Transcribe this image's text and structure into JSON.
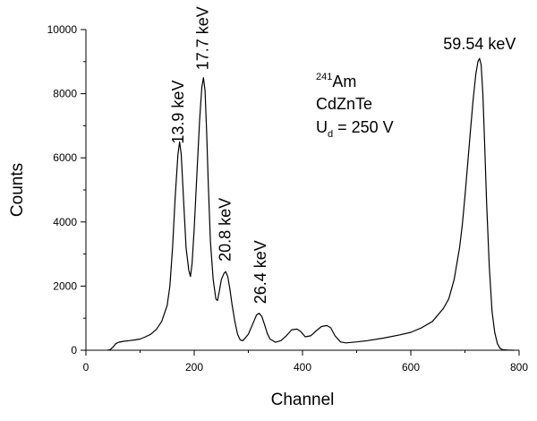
{
  "colors": {
    "line": "#000000",
    "axis": "#000000",
    "background": "#ffffff"
  },
  "chart_data": {
    "type": "line",
    "xlabel": "Channel",
    "ylabel": "Counts",
    "xlim": [
      0,
      800
    ],
    "ylim": [
      0,
      10000
    ],
    "xticks": [
      0,
      200,
      400,
      600,
      800
    ],
    "yticks": [
      0,
      2000,
      4000,
      6000,
      8000,
      10000
    ],
    "grid": false,
    "series": [
      {
        "x": [
          40,
          45,
          50,
          55,
          60,
          70,
          80,
          90,
          100,
          110,
          120,
          130,
          140,
          150,
          155,
          160,
          165,
          170,
          173,
          176,
          180,
          185,
          190,
          193,
          196,
          200,
          205,
          210,
          214,
          217,
          220,
          223,
          226,
          230,
          235,
          240,
          243,
          246,
          250,
          255,
          258,
          262,
          266,
          270,
          275,
          280,
          285,
          290,
          300,
          310,
          315,
          320,
          325,
          330,
          335,
          340,
          350,
          360,
          370,
          380,
          390,
          397,
          405,
          415,
          425,
          435,
          445,
          452,
          460,
          470,
          480,
          500,
          520,
          550,
          580,
          600,
          620,
          640,
          660,
          670,
          680,
          690,
          695,
          700,
          705,
          710,
          715,
          720,
          724,
          727,
          730,
          733,
          736,
          740,
          745,
          750,
          755,
          760,
          765,
          770,
          780,
          790
        ],
        "y": [
          0,
          20,
          100,
          200,
          250,
          280,
          300,
          320,
          350,
          420,
          500,
          650,
          900,
          1400,
          2000,
          3200,
          4800,
          6100,
          6500,
          6100,
          4800,
          3200,
          2500,
          2300,
          2700,
          3800,
          5500,
          7200,
          8200,
          8500,
          8100,
          6800,
          5200,
          3400,
          2200,
          1600,
          1550,
          1800,
          2200,
          2400,
          2450,
          2300,
          1900,
          1400,
          900,
          500,
          320,
          300,
          500,
          900,
          1100,
          1150,
          1050,
          800,
          520,
          350,
          250,
          300,
          450,
          640,
          660,
          580,
          420,
          450,
          600,
          740,
          770,
          700,
          450,
          260,
          230,
          260,
          300,
          380,
          480,
          560,
          700,
          900,
          1300,
          1600,
          2200,
          3200,
          3900,
          4800,
          5800,
          6800,
          7800,
          8600,
          9000,
          9100,
          8900,
          8000,
          6600,
          4600,
          2600,
          1200,
          550,
          200,
          60,
          15,
          5,
          0
        ]
      }
    ],
    "annotations": [
      {
        "text": "13.9 keV",
        "x": 170
      },
      {
        "text": "17.7 keV",
        "x": 216
      },
      {
        "text": "20.8 keV",
        "x": 257
      },
      {
        "text": "26.4 keV",
        "x": 322
      },
      {
        "text": "59.54 keV",
        "x": 727
      }
    ],
    "info": {
      "isotope_sup": "241",
      "isotope": "Am",
      "detector": "CdZnTe",
      "voltage_main": "U",
      "voltage_sub": "d",
      "voltage_rest": " = 250 V"
    }
  }
}
